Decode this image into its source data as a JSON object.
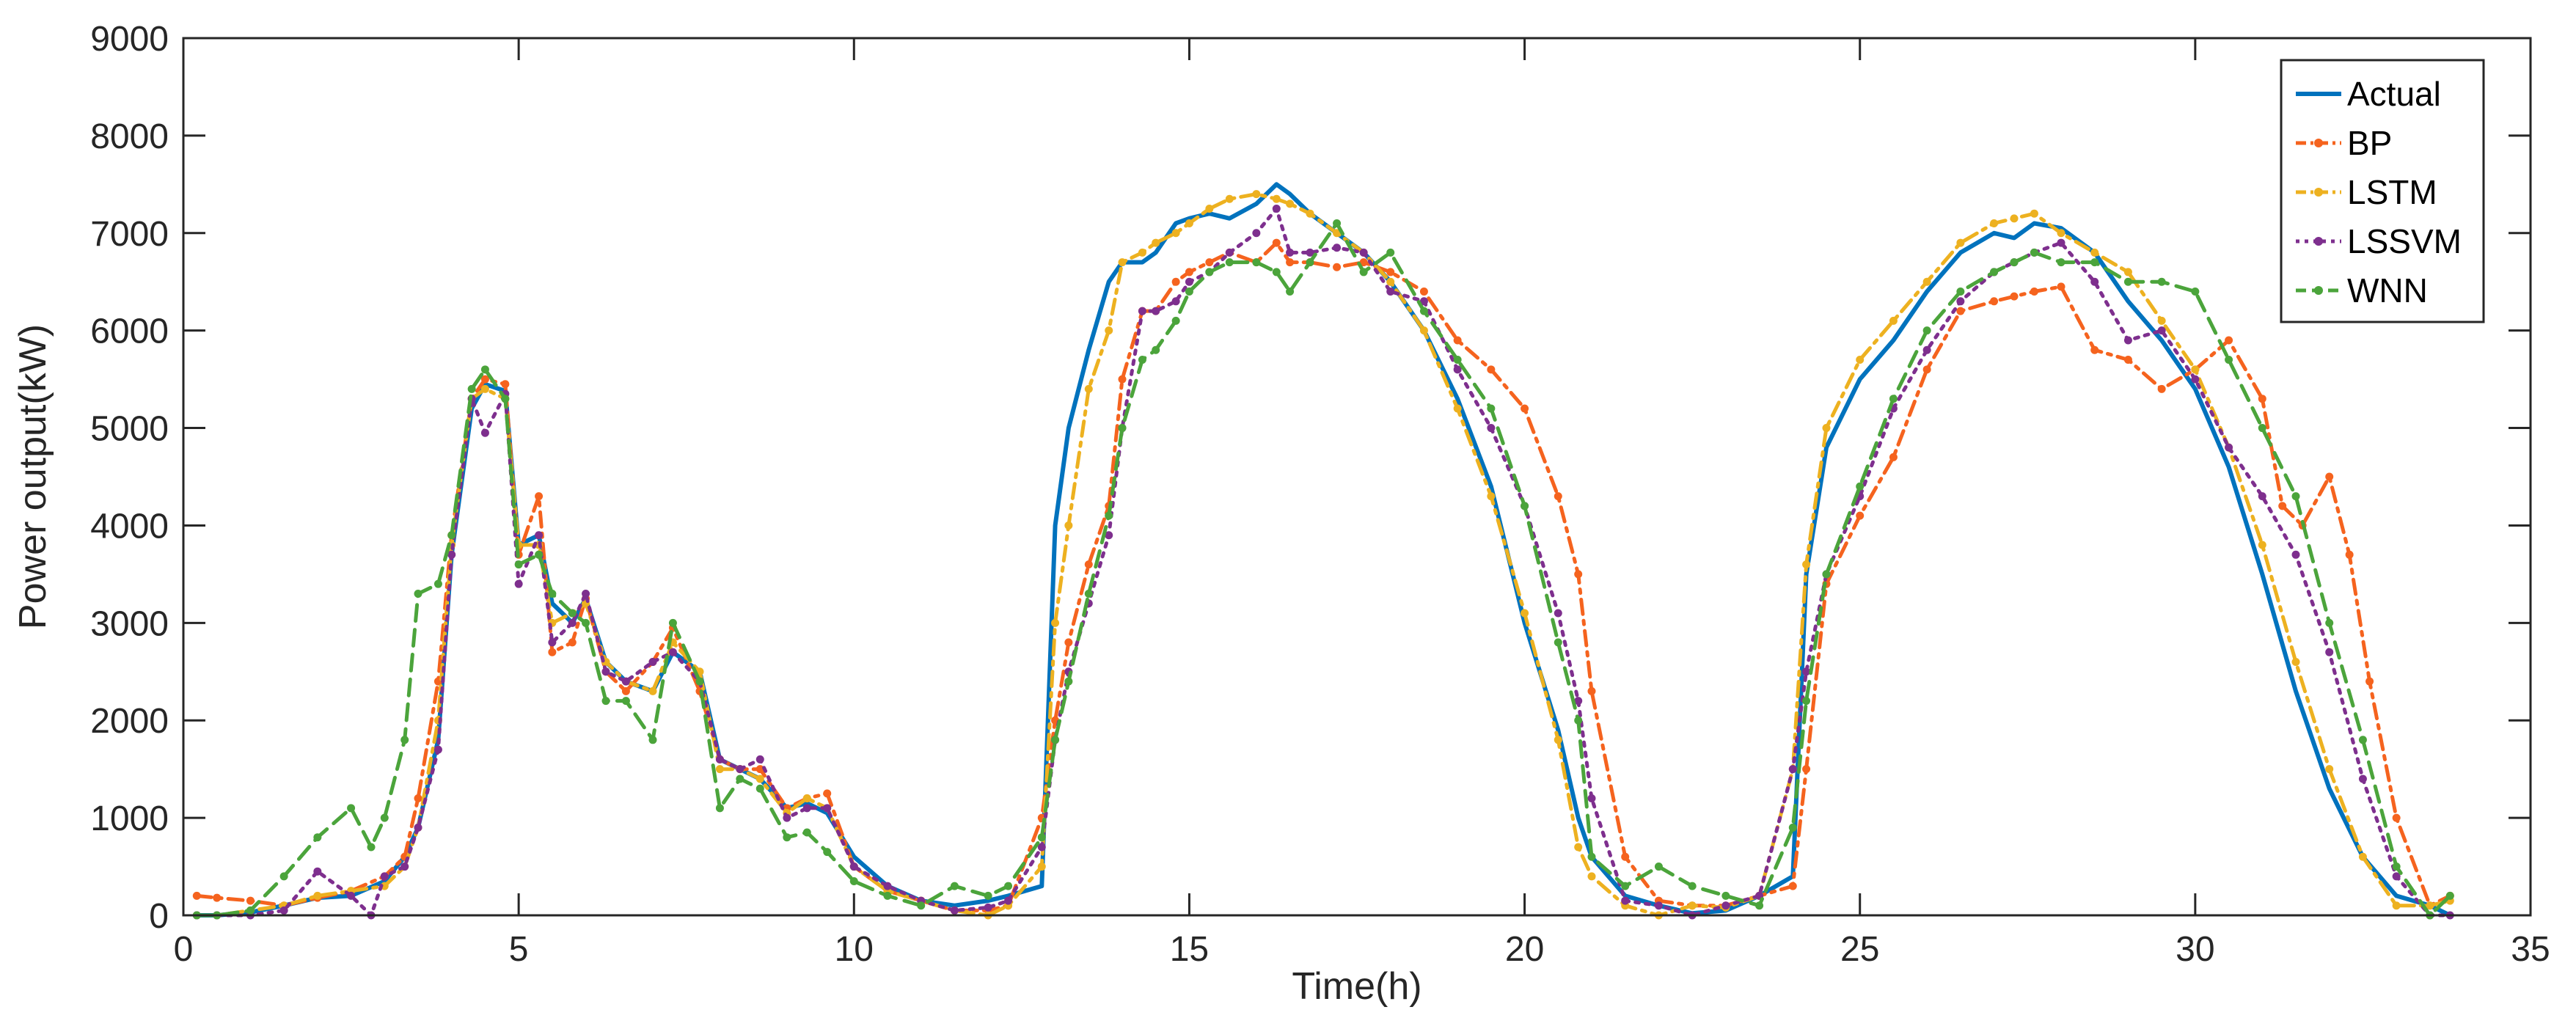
{
  "chart_data": {
    "type": "line",
    "title": "",
    "xlabel": "Time(h)",
    "ylabel": "Power output(kW)",
    "xlim": [
      0,
      35
    ],
    "ylim": [
      0,
      9000
    ],
    "xticks": [
      0,
      5,
      10,
      15,
      20,
      25,
      30,
      35
    ],
    "yticks": [
      0,
      1000,
      2000,
      3000,
      4000,
      5000,
      6000,
      7000,
      8000,
      9000
    ],
    "grid": false,
    "legend_position": "top-right",
    "series": [
      {
        "name": "Actual",
        "color": "#0072BD",
        "style": "solid",
        "x": [
          0.2,
          0.5,
          1,
          1.5,
          2,
          2.5,
          3,
          3.3,
          3.5,
          3.8,
          4,
          4.3,
          4.5,
          4.8,
          5,
          5.3,
          5.5,
          5.8,
          6,
          6.3,
          6.6,
          7,
          7.3,
          7.7,
          8,
          8.3,
          8.6,
          9,
          9.3,
          9.6,
          10,
          10.5,
          11,
          11.5,
          12,
          12.3,
          12.8,
          13,
          13.2,
          13.5,
          13.8,
          14,
          14.3,
          14.5,
          14.8,
          15,
          15.3,
          15.6,
          16,
          16.3,
          16.5,
          16.8,
          17.2,
          17.6,
          18,
          18.5,
          19,
          19.5,
          20,
          20.5,
          20.8,
          21,
          21.5,
          22,
          22.5,
          23,
          23.5,
          24,
          24.2,
          24.5,
          25,
          25.5,
          26,
          26.5,
          27,
          27.3,
          27.6,
          28,
          28.5,
          29,
          29.5,
          30,
          30.5,
          31,
          31.5,
          32,
          32.5,
          33,
          33.5,
          33.8
        ],
        "y": [
          0,
          0,
          30,
          100,
          180,
          200,
          350,
          600,
          900,
          1800,
          3700,
          5200,
          5450,
          5380,
          3800,
          3900,
          3200,
          3000,
          3250,
          2600,
          2400,
          2300,
          2700,
          2500,
          1600,
          1500,
          1400,
          1100,
          1150,
          1050,
          600,
          300,
          150,
          100,
          150,
          200,
          300,
          4000,
          5000,
          5800,
          6500,
          6700,
          6700,
          6800,
          7100,
          7150,
          7200,
          7150,
          7300,
          7500,
          7400,
          7200,
          7000,
          6800,
          6500,
          6000,
          5300,
          4400,
          3000,
          1900,
          1000,
          600,
          200,
          100,
          20,
          50,
          200,
          400,
          3500,
          4800,
          5500,
          5900,
          6400,
          6800,
          7000,
          6950,
          7100,
          7050,
          6800,
          6300,
          5900,
          5400,
          4600,
          3500,
          2300,
          1300,
          600,
          200,
          100,
          0
        ]
      },
      {
        "name": "BP",
        "color": "#F5631E",
        "style": "dashdot",
        "x": [
          0.2,
          0.5,
          1,
          1.5,
          2,
          2.5,
          3,
          3.3,
          3.5,
          3.8,
          4,
          4.3,
          4.5,
          4.8,
          5,
          5.3,
          5.5,
          5.8,
          6,
          6.3,
          6.6,
          7,
          7.3,
          7.7,
          8,
          8.3,
          8.6,
          9,
          9.3,
          9.6,
          10,
          10.5,
          11,
          11.5,
          12,
          12.3,
          12.8,
          13,
          13.2,
          13.5,
          13.8,
          14,
          14.3,
          14.5,
          14.8,
          15,
          15.3,
          15.6,
          16,
          16.3,
          16.5,
          16.8,
          17.2,
          17.6,
          18,
          18.5,
          19,
          19.5,
          20,
          20.5,
          20.8,
          21,
          21.5,
          22,
          22.5,
          23,
          23.5,
          24,
          24.2,
          24.5,
          25,
          25.5,
          26,
          26.5,
          27,
          27.3,
          27.6,
          28,
          28.5,
          29,
          29.5,
          30,
          30.5,
          31,
          31.3,
          31.6,
          32,
          32.3,
          32.6,
          33,
          33.5,
          33.8
        ],
        "y": [
          200,
          180,
          150,
          100,
          180,
          250,
          400,
          600,
          1200,
          2400,
          3900,
          5300,
          5500,
          5450,
          3700,
          4300,
          2700,
          2800,
          3250,
          2500,
          2300,
          2600,
          2950,
          2300,
          1600,
          1500,
          1500,
          1100,
          1200,
          1250,
          500,
          250,
          150,
          50,
          50,
          100,
          1000,
          2000,
          2800,
          3600,
          4200,
          5500,
          6200,
          6200,
          6500,
          6600,
          6700,
          6800,
          6700,
          6900,
          6700,
          6700,
          6650,
          6700,
          6600,
          6400,
          5900,
          5600,
          5200,
          4300,
          3500,
          2300,
          600,
          150,
          100,
          100,
          200,
          300,
          1500,
          3400,
          4100,
          4700,
          5600,
          6200,
          6300,
          6350,
          6400,
          6450,
          5800,
          5700,
          5400,
          5600,
          5900,
          5300,
          4200,
          4000,
          4500,
          3700,
          2400,
          1000,
          100,
          200
        ]
      },
      {
        "name": "LSTM",
        "color": "#EDB120",
        "style": "dashdot",
        "x": [
          0.2,
          0.5,
          1,
          1.5,
          2,
          2.5,
          3,
          3.3,
          3.5,
          3.8,
          4,
          4.3,
          4.5,
          4.8,
          5,
          5.3,
          5.5,
          5.8,
          6,
          6.3,
          6.6,
          7,
          7.3,
          7.7,
          8,
          8.3,
          8.6,
          9,
          9.3,
          9.6,
          10,
          10.5,
          11,
          11.5,
          12,
          12.3,
          12.8,
          13,
          13.2,
          13.5,
          13.8,
          14,
          14.3,
          14.5,
          14.8,
          15,
          15.3,
          15.6,
          16,
          16.3,
          16.5,
          16.8,
          17.2,
          17.6,
          18,
          18.5,
          19,
          19.5,
          20,
          20.5,
          20.8,
          21,
          21.5,
          22,
          22.5,
          23,
          23.5,
          24,
          24.2,
          24.5,
          25,
          25.5,
          26,
          26.5,
          27,
          27.3,
          27.6,
          28,
          28.5,
          29,
          29.5,
          30,
          30.5,
          31,
          31.5,
          32,
          32.5,
          33,
          33.5,
          33.8
        ],
        "y": [
          0,
          0,
          50,
          100,
          200,
          250,
          300,
          500,
          900,
          2000,
          3800,
          5300,
          5400,
          5300,
          3800,
          3800,
          3000,
          3100,
          3200,
          2600,
          2400,
          2300,
          2800,
          2500,
          1500,
          1500,
          1400,
          1050,
          1200,
          1100,
          500,
          250,
          150,
          50,
          0,
          100,
          500,
          3000,
          4000,
          5400,
          6000,
          6700,
          6800,
          6900,
          7000,
          7100,
          7250,
          7350,
          7400,
          7350,
          7300,
          7200,
          7000,
          6800,
          6500,
          6000,
          5200,
          4300,
          3100,
          1800,
          700,
          400,
          100,
          0,
          100,
          80,
          200,
          1500,
          3600,
          5000,
          5700,
          6100,
          6500,
          6900,
          7100,
          7150,
          7200,
          7000,
          6800,
          6600,
          6100,
          5600,
          4800,
          3800,
          2600,
          1500,
          600,
          100,
          100,
          150
        ]
      },
      {
        "name": "LSSVM",
        "color": "#7E2F8E",
        "style": "dotted",
        "x": [
          0.2,
          0.5,
          1,
          1.5,
          2,
          2.5,
          2.8,
          3,
          3.3,
          3.5,
          3.8,
          4,
          4.3,
          4.5,
          4.8,
          5,
          5.3,
          5.5,
          5.8,
          6,
          6.3,
          6.6,
          7,
          7.3,
          7.7,
          8,
          8.3,
          8.6,
          9,
          9.3,
          9.6,
          10,
          10.5,
          11,
          11.5,
          12,
          12.3,
          12.8,
          13,
          13.2,
          13.5,
          13.8,
          14,
          14.3,
          14.5,
          14.8,
          15,
          15.3,
          15.6,
          16,
          16.3,
          16.5,
          16.8,
          17.2,
          17.6,
          18,
          18.5,
          19,
          19.5,
          20,
          20.5,
          20.8,
          21,
          21.5,
          22,
          22.5,
          23,
          23.5,
          24,
          24.2,
          24.5,
          25,
          25.5,
          26,
          26.5,
          27,
          27.3,
          27.6,
          28,
          28.5,
          29,
          29.5,
          30,
          30.5,
          31,
          31.5,
          32,
          32.5,
          33,
          33.5,
          33.8
        ],
        "y": [
          0,
          0,
          0,
          50,
          450,
          200,
          0,
          400,
          500,
          900,
          1700,
          3700,
          5300,
          4950,
          5350,
          3400,
          3900,
          2800,
          3000,
          3300,
          2500,
          2400,
          2600,
          2700,
          2400,
          1600,
          1500,
          1600,
          1000,
          1100,
          1100,
          500,
          300,
          150,
          50,
          80,
          150,
          700,
          1800,
          2500,
          3200,
          3900,
          5000,
          6200,
          6200,
          6300,
          6500,
          6600,
          6800,
          7000,
          7250,
          6800,
          6800,
          6850,
          6800,
          6400,
          6300,
          5600,
          5000,
          4200,
          3100,
          2200,
          1200,
          150,
          100,
          0,
          100,
          200,
          1500,
          2500,
          3500,
          4300,
          5200,
          5800,
          6300,
          6600,
          6700,
          6800,
          6900,
          6500,
          5900,
          6000,
          5500,
          4800,
          4300,
          3700,
          2700,
          1400,
          400,
          0,
          0
        ]
      },
      {
        "name": "WNN",
        "color": "#4BA43B",
        "style": "dashed",
        "x": [
          0.2,
          0.5,
          1,
          1.5,
          2,
          2.5,
          2.8,
          3,
          3.3,
          3.5,
          3.8,
          4,
          4.3,
          4.5,
          4.8,
          5,
          5.3,
          5.5,
          5.8,
          6,
          6.3,
          6.6,
          7,
          7.3,
          7.7,
          8,
          8.3,
          8.6,
          9,
          9.3,
          9.6,
          10,
          10.5,
          11,
          11.5,
          12,
          12.3,
          12.8,
          13,
          13.2,
          13.5,
          13.8,
          14,
          14.3,
          14.5,
          14.8,
          15,
          15.3,
          15.6,
          16,
          16.3,
          16.5,
          16.8,
          17.2,
          17.6,
          18,
          18.5,
          19,
          19.5,
          20,
          20.5,
          20.8,
          21,
          21.5,
          22,
          22.5,
          23,
          23.5,
          24,
          24.2,
          24.5,
          25,
          25.5,
          26,
          26.5,
          27,
          27.3,
          27.6,
          28,
          28.5,
          29,
          29.5,
          30,
          30.5,
          31,
          31.5,
          32,
          32.5,
          33,
          33.5,
          33.8
        ],
        "y": [
          0,
          0,
          50,
          400,
          800,
          1100,
          700,
          1000,
          1800,
          3300,
          3400,
          3900,
          5400,
          5600,
          5300,
          3600,
          3700,
          3300,
          3100,
          3000,
          2200,
          2200,
          1800,
          3000,
          2400,
          1100,
          1400,
          1300,
          800,
          850,
          650,
          350,
          200,
          100,
          300,
          200,
          300,
          800,
          1800,
          2400,
          3300,
          4100,
          5000,
          5700,
          5800,
          6100,
          6400,
          6600,
          6700,
          6700,
          6600,
          6400,
          6700,
          7100,
          6600,
          6800,
          6200,
          5700,
          5200,
          4200,
          2800,
          2000,
          600,
          300,
          500,
          300,
          200,
          100,
          900,
          2200,
          3500,
          4400,
          5300,
          6000,
          6400,
          6600,
          6700,
          6800,
          6700,
          6700,
          6500,
          6500,
          6400,
          5700,
          5000,
          4300,
          3000,
          1800,
          500,
          0,
          200
        ]
      }
    ]
  }
}
